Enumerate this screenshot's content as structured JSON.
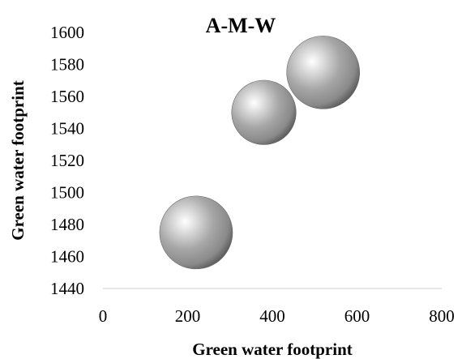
{
  "chart_data": {
    "type": "bubble",
    "title": "A-M-W",
    "xlabel": "Green water footprint",
    "ylabel": "Green water footprint",
    "xlim": [
      0,
      800
    ],
    "ylim": [
      1440,
      1600
    ],
    "x_ticks": [
      0,
      200,
      400,
      600,
      800
    ],
    "y_ticks": [
      1440,
      1460,
      1480,
      1500,
      1520,
      1540,
      1560,
      1580,
      1600
    ],
    "grid": false,
    "legend": "none",
    "bubble_color": "#8c8c8c",
    "points": [
      {
        "x": 220,
        "y": 1475,
        "size": 1.0
      },
      {
        "x": 380,
        "y": 1550,
        "size": 0.78
      },
      {
        "x": 520,
        "y": 1575,
        "size": 1.0
      }
    ]
  }
}
